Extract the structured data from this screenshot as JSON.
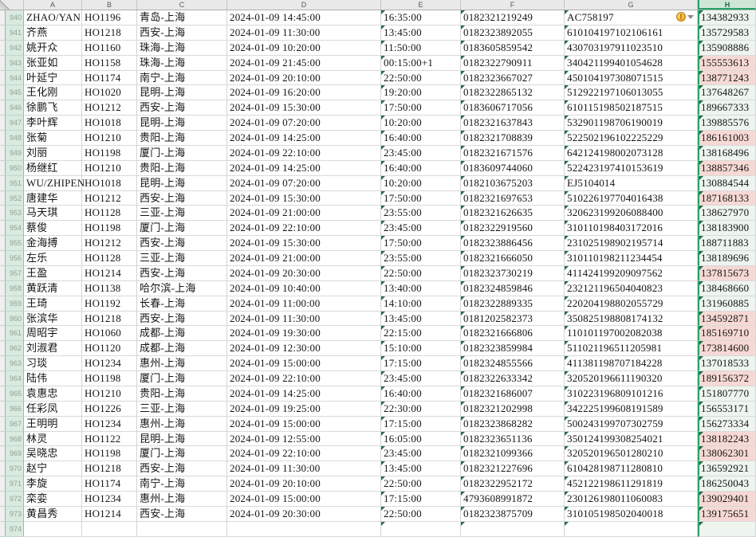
{
  "app": {
    "type": "spreadsheet",
    "description": "flight passenger list"
  },
  "colors": {
    "selection_green": "#26a269",
    "selected_header_bg": "#cfe6d7",
    "row_header_bg": "#d9eae0",
    "pink_cell_fill": "#f6d9d5",
    "text_as_number_triangle": "#1d7044",
    "warning_icon": "#f2a92c",
    "header_bg": "#e9e9e9"
  },
  "sheet": {
    "column_letters": [
      "A",
      "B",
      "C",
      "D",
      "E",
      "F",
      "G",
      "H"
    ],
    "selected_column": "H",
    "first_visible_row": 940,
    "last_visible_row": 974,
    "rows": [
      {
        "n": 940,
        "name": "ZHAO/YAN",
        "flight": "HO1196",
        "route": "青岛-上海",
        "departure": "2024-01-09 14:45:00",
        "arrival": "16:35:00",
        "ticket_no": "0182321219249",
        "id_no": "AC758197",
        "phone": "134382933",
        "warning": true,
        "h_pink": false
      },
      {
        "n": 941,
        "name": "齐燕",
        "flight": "HO1218",
        "route": "西安-上海",
        "departure": "2024-01-09 11:30:00",
        "arrival": "13:45:00",
        "ticket_no": "0182323892055",
        "id_no": "610104197102106161",
        "phone": "135729583",
        "warning": false,
        "h_pink": false
      },
      {
        "n": 942,
        "name": "姚开众",
        "flight": "HO1160",
        "route": "珠海-上海",
        "departure": "2024-01-09 10:20:00",
        "arrival": "11:50:00",
        "ticket_no": "0183605859542",
        "id_no": "430703197911023510",
        "phone": "135908886",
        "warning": false,
        "h_pink": false
      },
      {
        "n": 943,
        "name": "张亚如",
        "flight": "HO1158",
        "route": "珠海-上海",
        "departure": "2024-01-09 21:45:00",
        "arrival": "00:15:00+1",
        "ticket_no": "0182322790911",
        "id_no": "340421199401054628",
        "phone": "155553613",
        "warning": false,
        "h_pink": true
      },
      {
        "n": 944,
        "name": "叶延宁",
        "flight": "HO1174",
        "route": "南宁-上海",
        "departure": "2024-01-09 20:10:00",
        "arrival": "22:50:00",
        "ticket_no": "0182323667027",
        "id_no": "450104197308071515",
        "phone": "138771243",
        "warning": false,
        "h_pink": true
      },
      {
        "n": 945,
        "name": "王化刚",
        "flight": "HO1020",
        "route": "昆明-上海",
        "departure": "2024-01-09 16:20:00",
        "arrival": "19:20:00",
        "ticket_no": "0182322865132",
        "id_no": "512922197106013055",
        "phone": "137648267",
        "warning": false,
        "h_pink": false
      },
      {
        "n": 946,
        "name": "徐鹏飞",
        "flight": "HO1212",
        "route": "西安-上海",
        "departure": "2024-01-09 15:30:00",
        "arrival": "17:50:00",
        "ticket_no": "0183606717056",
        "id_no": "610115198502187515",
        "phone": "189667333",
        "warning": false,
        "h_pink": false
      },
      {
        "n": 947,
        "name": "李叶辉",
        "flight": "HO1018",
        "route": "昆明-上海",
        "departure": "2024-01-09 07:20:00",
        "arrival": "10:20:00",
        "ticket_no": "0182321637843",
        "id_no": "532901198706190019",
        "phone": "139885576",
        "warning": false,
        "h_pink": false
      },
      {
        "n": 948,
        "name": "张菊",
        "flight": "HO1210",
        "route": "贵阳-上海",
        "departure": "2024-01-09 14:25:00",
        "arrival": "16:40:00",
        "ticket_no": "0182321708839",
        "id_no": "522502196102225229",
        "phone": "186161003",
        "warning": false,
        "h_pink": true
      },
      {
        "n": 949,
        "name": "刘丽",
        "flight": "HO1198",
        "route": "厦门-上海",
        "departure": "2024-01-09 22:10:00",
        "arrival": "23:45:00",
        "ticket_no": "0182321671576",
        "id_no": "642124198002073128",
        "phone": "138168496",
        "warning": false,
        "h_pink": false
      },
      {
        "n": 950,
        "name": "杨继红",
        "flight": "HO1210",
        "route": "贵阳-上海",
        "departure": "2024-01-09 14:25:00",
        "arrival": "16:40:00",
        "ticket_no": "0183609744060",
        "id_no": "522423197410153619",
        "phone": "138857346",
        "warning": false,
        "h_pink": true
      },
      {
        "n": 951,
        "name": "WU/ZHIPEN",
        "flight": "HO1018",
        "route": "昆明-上海",
        "departure": "2024-01-09 07:20:00",
        "arrival": "10:20:00",
        "ticket_no": "0182103675203",
        "id_no": "EJ5104014",
        "phone": "130884544",
        "warning": false,
        "h_pink": false
      },
      {
        "n": 952,
        "name": "唐建华",
        "flight": "HO1212",
        "route": "西安-上海",
        "departure": "2024-01-09 15:30:00",
        "arrival": "17:50:00",
        "ticket_no": "0182321697653",
        "id_no": "510226197704016438",
        "phone": "187168133",
        "warning": false,
        "h_pink": true
      },
      {
        "n": 953,
        "name": "马天琪",
        "flight": "HO1128",
        "route": "三亚-上海",
        "departure": "2024-01-09 21:00:00",
        "arrival": "23:55:00",
        "ticket_no": "0182321626635",
        "id_no": "320623199206088400",
        "phone": "138627970",
        "warning": false,
        "h_pink": false
      },
      {
        "n": 954,
        "name": "蔡俊",
        "flight": "HO1198",
        "route": "厦门-上海",
        "departure": "2024-01-09 22:10:00",
        "arrival": "23:45:00",
        "ticket_no": "0182322919560",
        "id_no": "310110198403172016",
        "phone": "138183900",
        "warning": false,
        "h_pink": false
      },
      {
        "n": 955,
        "name": "金海搏",
        "flight": "HO1212",
        "route": "西安-上海",
        "departure": "2024-01-09 15:30:00",
        "arrival": "17:50:00",
        "ticket_no": "0182323886456",
        "id_no": "231025198902195714",
        "phone": "188711883",
        "warning": false,
        "h_pink": false
      },
      {
        "n": 956,
        "name": "左乐",
        "flight": "HO1128",
        "route": "三亚-上海",
        "departure": "2024-01-09 21:00:00",
        "arrival": "23:55:00",
        "ticket_no": "0182321666050",
        "id_no": "310110198211234454",
        "phone": "138189696",
        "warning": false,
        "h_pink": false
      },
      {
        "n": 957,
        "name": "王盈",
        "flight": "HO1214",
        "route": "西安-上海",
        "departure": "2024-01-09 20:30:00",
        "arrival": "22:50:00",
        "ticket_no": "0182323730219",
        "id_no": "411424199209097562",
        "phone": "137815673",
        "warning": false,
        "h_pink": true
      },
      {
        "n": 958,
        "name": "黄跃清",
        "flight": "HO1138",
        "route": "哈尔滨-上海",
        "departure": "2024-01-09 10:40:00",
        "arrival": "13:40:00",
        "ticket_no": "0182324859846",
        "id_no": "232121196504040823",
        "phone": "138468660",
        "warning": false,
        "h_pink": false
      },
      {
        "n": 959,
        "name": "王琦",
        "flight": "HO1192",
        "route": "长春-上海",
        "departure": "2024-01-09 11:00:00",
        "arrival": "14:10:00",
        "ticket_no": "0182322889335",
        "id_no": "220204198802055729",
        "phone": "131960885",
        "warning": false,
        "h_pink": false
      },
      {
        "n": 960,
        "name": "张滨华",
        "flight": "HO1218",
        "route": "西安-上海",
        "departure": "2024-01-09 11:30:00",
        "arrival": "13:45:00",
        "ticket_no": "0181202582373",
        "id_no": "350825198808174132",
        "phone": "134592871",
        "warning": false,
        "h_pink": true
      },
      {
        "n": 961,
        "name": "周昭宇",
        "flight": "HO1060",
        "route": "成都-上海",
        "departure": "2024-01-09 19:30:00",
        "arrival": "22:15:00",
        "ticket_no": "0182321666806",
        "id_no": "110101197002082038",
        "phone": "185169710",
        "warning": false,
        "h_pink": true
      },
      {
        "n": 962,
        "name": "刘淑君",
        "flight": "HO1120",
        "route": "成都-上海",
        "departure": "2024-01-09 12:30:00",
        "arrival": "15:10:00",
        "ticket_no": "0182323859984",
        "id_no": "511021196511205981",
        "phone": "173814600",
        "warning": false,
        "h_pink": true
      },
      {
        "n": 963,
        "name": "习琰",
        "flight": "HO1234",
        "route": "惠州-上海",
        "departure": "2024-01-09 15:00:00",
        "arrival": "17:15:00",
        "ticket_no": "0182324855566",
        "id_no": "411381198707184228",
        "phone": "137018533",
        "warning": false,
        "h_pink": false
      },
      {
        "n": 964,
        "name": "陆伟",
        "flight": "HO1198",
        "route": "厦门-上海",
        "departure": "2024-01-09 22:10:00",
        "arrival": "23:45:00",
        "ticket_no": "0182322633342",
        "id_no": "320520196611190320",
        "phone": "189156372",
        "warning": false,
        "h_pink": true
      },
      {
        "n": 965,
        "name": "袁惠忠",
        "flight": "HO1210",
        "route": "贵阳-上海",
        "departure": "2024-01-09 14:25:00",
        "arrival": "16:40:00",
        "ticket_no": "0182321686007",
        "id_no": "310223196809101216",
        "phone": "151807770",
        "warning": false,
        "h_pink": false
      },
      {
        "n": 966,
        "name": "任彩凤",
        "flight": "HO1226",
        "route": "三亚-上海",
        "departure": "2024-01-09 19:25:00",
        "arrival": "22:30:00",
        "ticket_no": "0182321202998",
        "id_no": "342225199608191589",
        "phone": "156553171",
        "warning": false,
        "h_pink": false
      },
      {
        "n": 967,
        "name": "王明明",
        "flight": "HO1234",
        "route": "惠州-上海",
        "departure": "2024-01-09 15:00:00",
        "arrival": "17:15:00",
        "ticket_no": "0182323868282",
        "id_no": "500243199707302759",
        "phone": "156273334",
        "warning": false,
        "h_pink": false
      },
      {
        "n": 968,
        "name": "林灵",
        "flight": "HO1122",
        "route": "昆明-上海",
        "departure": "2024-01-09 12:55:00",
        "arrival": "16:05:00",
        "ticket_no": "0182323651136",
        "id_no": "350124199308254021",
        "phone": "138182243",
        "warning": false,
        "h_pink": true
      },
      {
        "n": 969,
        "name": "吴晓忠",
        "flight": "HO1198",
        "route": "厦门-上海",
        "departure": "2024-01-09 22:10:00",
        "arrival": "23:45:00",
        "ticket_no": "0182321099366",
        "id_no": "320520196501280210",
        "phone": "138062301",
        "warning": false,
        "h_pink": true
      },
      {
        "n": 970,
        "name": "赵宁",
        "flight": "HO1218",
        "route": "西安-上海",
        "departure": "2024-01-09 11:30:00",
        "arrival": "13:45:00",
        "ticket_no": "0182321227696",
        "id_no": "610428198711280810",
        "phone": "136592921",
        "warning": false,
        "h_pink": false
      },
      {
        "n": 971,
        "name": "李旋",
        "flight": "HO1174",
        "route": "南宁-上海",
        "departure": "2024-01-09 20:10:00",
        "arrival": "22:50:00",
        "ticket_no": "0182322952172",
        "id_no": "452122198611291819",
        "phone": "186250043",
        "warning": false,
        "h_pink": false
      },
      {
        "n": 972,
        "name": "栾娈",
        "flight": "HO1234",
        "route": "惠州-上海",
        "departure": "2024-01-09 15:00:00",
        "arrival": "17:15:00",
        "ticket_no": "4793608991872",
        "id_no": "230126198011060083",
        "phone": "139029401",
        "warning": false,
        "h_pink": true
      },
      {
        "n": 973,
        "name": "黄昌秀",
        "flight": "HO1214",
        "route": "西安-上海",
        "departure": "2024-01-09 20:30:00",
        "arrival": "22:50:00",
        "ticket_no": "0182323875709",
        "id_no": "310105198502040018",
        "phone": "139175651",
        "warning": false,
        "h_pink": true
      },
      {
        "n": 974,
        "name": "",
        "flight": "",
        "route": "",
        "departure": "",
        "arrival": "",
        "ticket_no": "",
        "id_no": "",
        "phone": "",
        "warning": false,
        "h_pink": false,
        "partial": true
      }
    ]
  },
  "icons": {
    "warning_label": "!",
    "select_all_corner": "select-all-triangle"
  }
}
